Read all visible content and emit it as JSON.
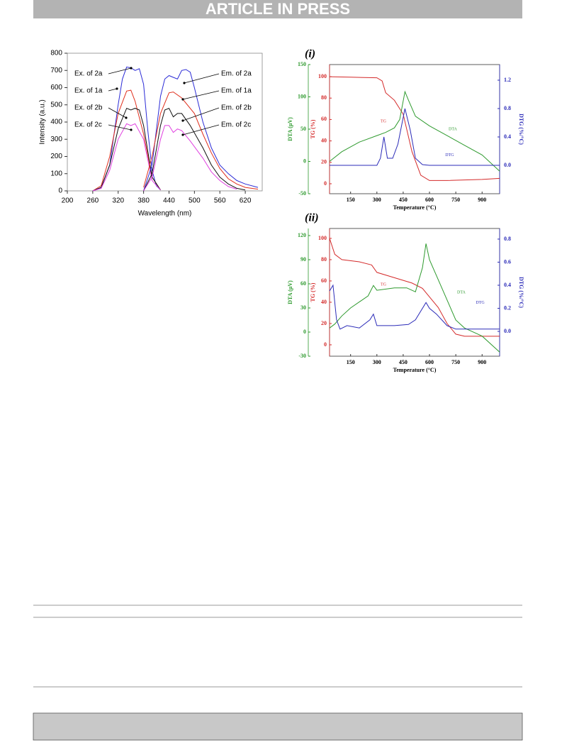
{
  "header": "ARTICLE IN PRESS",
  "chart_data": [
    {
      "type": "line",
      "xlabel": "Wavelength (nm)",
      "ylabel": "Intensity (a.u.)",
      "xlim": [
        200,
        660
      ],
      "xticks": [
        200,
        260,
        320,
        380,
        440,
        500,
        560,
        620
      ],
      "ylim": [
        0,
        800
      ],
      "yticks": [
        0,
        100,
        200,
        300,
        400,
        500,
        600,
        700,
        800
      ],
      "annotations": [
        "Ex. of 2a",
        "Ex. of 1a",
        "Ex. of 2b",
        "Ex. of 2c",
        "Em. of 2a",
        "Em. of 1a",
        "Em. of 2b",
        "Em. of 2c"
      ],
      "series": [
        {
          "name": "Ex. of 2a",
          "color": "#2b2bd6",
          "x": [
            260,
            280,
            300,
            320,
            330,
            340,
            350,
            360,
            370,
            380,
            390,
            400,
            410,
            420
          ],
          "values": [
            0,
            20,
            150,
            500,
            650,
            720,
            715,
            700,
            710,
            620,
            350,
            120,
            30,
            5
          ]
        },
        {
          "name": "Ex. of 1a",
          "color": "#e0301e",
          "x": [
            260,
            280,
            300,
            320,
            340,
            350,
            360,
            380,
            400,
            420
          ],
          "values": [
            0,
            30,
            200,
            450,
            580,
            585,
            520,
            330,
            80,
            5
          ]
        },
        {
          "name": "Ex. of 2b",
          "color": "#111111",
          "x": [
            260,
            280,
            300,
            320,
            340,
            350,
            360,
            370,
            380,
            400,
            420
          ],
          "values": [
            0,
            20,
            150,
            360,
            480,
            470,
            480,
            470,
            380,
            80,
            5
          ]
        },
        {
          "name": "Ex. of 2c",
          "color": "#e040e0",
          "x": [
            260,
            280,
            300,
            320,
            340,
            350,
            360,
            380,
            400,
            420
          ],
          "values": [
            0,
            15,
            120,
            300,
            390,
            380,
            390,
            300,
            60,
            5
          ]
        },
        {
          "name": "Em. of 2a",
          "color": "#2b2bd6",
          "x": [
            380,
            400,
            420,
            430,
            440,
            450,
            460,
            470,
            480,
            490,
            500,
            520,
            540,
            560,
            580,
            600,
            620,
            650
          ],
          "values": [
            0,
            150,
            550,
            650,
            670,
            660,
            650,
            700,
            705,
            690,
            600,
            400,
            250,
            150,
            100,
            60,
            40,
            20
          ]
        },
        {
          "name": "Em. of 1a",
          "color": "#e0301e",
          "x": [
            380,
            400,
            420,
            440,
            450,
            470,
            500,
            520,
            540,
            560,
            580,
            600,
            620,
            650
          ],
          "values": [
            20,
            200,
            450,
            570,
            575,
            540,
            450,
            330,
            220,
            130,
            70,
            40,
            20,
            10
          ]
        },
        {
          "name": "Em. of 2b",
          "color": "#111111",
          "x": [
            380,
            400,
            420,
            430,
            440,
            450,
            460,
            470,
            490,
            520,
            540,
            560,
            580,
            600,
            620
          ],
          "values": [
            0,
            100,
            380,
            470,
            480,
            430,
            450,
            450,
            380,
            250,
            150,
            80,
            40,
            15,
            5
          ]
        },
        {
          "name": "Em. of 2c",
          "color": "#e040e0",
          "x": [
            380,
            400,
            420,
            430,
            440,
            450,
            460,
            470,
            490,
            520,
            540,
            560,
            580,
            600
          ],
          "values": [
            0,
            80,
            300,
            380,
            380,
            340,
            360,
            350,
            290,
            190,
            110,
            60,
            25,
            10
          ]
        }
      ]
    },
    {
      "type": "tga",
      "title": "(i)",
      "xlabel": "Temperature (°C)",
      "ylabel": "DTA (µV)",
      "y2label": "DTG (%/°C)",
      "y3label": "TG (%)",
      "xlim": [
        30,
        1000
      ],
      "xticks": [
        150,
        300,
        450,
        600,
        750,
        900
      ],
      "ylim": [
        -50,
        150
      ],
      "yticks": [
        -50,
        0,
        50,
        100,
        150
      ],
      "y2lim": [
        -0.4,
        1.42
      ],
      "y2ticks": [
        {
          "value": 0,
          "label": "0.0"
        },
        {
          "value": 0.4,
          "label": "0.4"
        },
        {
          "value": 0.8,
          "label": "0.8"
        },
        {
          "value": 1.2,
          "label": "1.2"
        }
      ],
      "y3lim": [
        -9.3,
        111.3
      ],
      "y3ticks": [
        0,
        20,
        40,
        60,
        80,
        100
      ],
      "series": [
        {
          "name": "TG",
          "color": "#d42a2a",
          "axis": "y3",
          "x": [
            30,
            150,
            300,
            330,
            350,
            400,
            450,
            500,
            550,
            600,
            700,
            900,
            1000
          ],
          "values": [
            100,
            99.5,
            99,
            96,
            85,
            78,
            65,
            30,
            8,
            3,
            3,
            4,
            5
          ]
        },
        {
          "name": "DTA",
          "color": "#2e9a2e",
          "axis": "y",
          "x": [
            30,
            100,
            200,
            300,
            350,
            400,
            430,
            460,
            480,
            520,
            600,
            700,
            800,
            900,
            1000
          ],
          "values": [
            0,
            15,
            30,
            40,
            45,
            52,
            65,
            108,
            95,
            70,
            55,
            40,
            25,
            10,
            -15
          ]
        },
        {
          "name": "DTG",
          "color": "#2b2bb8",
          "axis": "y2",
          "x": [
            30,
            300,
            320,
            340,
            360,
            390,
            420,
            460,
            490,
            520,
            560,
            600,
            1000
          ],
          "values": [
            0,
            0,
            0.1,
            0.4,
            0.1,
            0.1,
            0.3,
            0.8,
            0.5,
            0.1,
            0.01,
            0,
            0
          ]
        }
      ]
    },
    {
      "type": "tga",
      "title": "(ii)",
      "xlabel": "Temperature (°C)",
      "ylabel": "DTA (µV)",
      "y2label": "DTG (%/°C)",
      "y3label": "TG (%)",
      "xlim": [
        30,
        1000
      ],
      "xticks": [
        150,
        300,
        450,
        600,
        750,
        900
      ],
      "ylim": [
        -30,
        128.8
      ],
      "yticks": [
        -30,
        0,
        30,
        60,
        90,
        120
      ],
      "y2lim": [
        -0.215,
        0.892
      ],
      "y2ticks": [
        {
          "value": 0,
          "label": "0.0"
        },
        {
          "value": 0.2,
          "label": "0.2"
        },
        {
          "value": 0.4,
          "label": "0.4"
        },
        {
          "value": 0.6,
          "label": "0.6"
        },
        {
          "value": 0.8,
          "label": "0.8"
        }
      ],
      "y3lim": [
        -10.7,
        109.3
      ],
      "y3ticks": [
        0,
        20,
        40,
        60,
        80,
        100
      ],
      "series": [
        {
          "name": "TG",
          "color": "#d42a2a",
          "axis": "y3",
          "x": [
            30,
            60,
            100,
            200,
            270,
            300,
            400,
            500,
            560,
            600,
            650,
            700,
            750,
            800,
            1000
          ],
          "values": [
            100,
            85,
            80,
            78,
            75,
            68,
            63,
            58,
            53,
            45,
            35,
            20,
            10,
            8,
            8
          ]
        },
        {
          "name": "DTA",
          "color": "#2e9a2e",
          "axis": "y",
          "x": [
            30,
            60,
            100,
            150,
            250,
            280,
            300,
            400,
            470,
            520,
            560,
            580,
            600,
            640,
            700,
            750,
            800,
            900,
            1000
          ],
          "values": [
            5,
            10,
            20,
            30,
            45,
            58,
            52,
            55,
            55,
            50,
            80,
            110,
            90,
            70,
            40,
            15,
            5,
            -5,
            -25
          ]
        },
        {
          "name": "DTG",
          "color": "#2b2bb8",
          "axis": "y2",
          "x": [
            30,
            50,
            70,
            90,
            130,
            200,
            260,
            280,
            300,
            400,
            480,
            520,
            580,
            600,
            640,
            700,
            750,
            1000
          ],
          "values": [
            0.35,
            0.4,
            0.1,
            0.02,
            0.05,
            0.03,
            0.1,
            0.15,
            0.05,
            0.05,
            0.06,
            0.1,
            0.25,
            0.2,
            0.15,
            0.05,
            0.02,
            0.02
          ]
        }
      ]
    }
  ]
}
